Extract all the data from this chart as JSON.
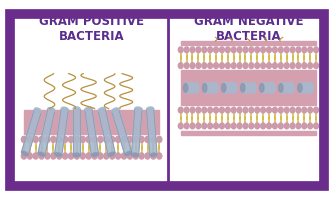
{
  "bg_color": "#ffffff",
  "border_color": "#6b2d8b",
  "title_left": "GRAM POSITIVE\nBACTERIA",
  "title_right": "GRAM NEGATIVE\nBACTERIA",
  "title_color": "#5b2d8e",
  "title_fontsize": 8.5,
  "pink_head": "#cc9aaa",
  "yellow_tail": "#d4b84a",
  "pink_layer": "#d4a0b0",
  "blue_protein": "#a8b8cc",
  "blue_protein_dark": "#8898b0",
  "flagella_color": "#b89040",
  "pili_color": "#b89040"
}
